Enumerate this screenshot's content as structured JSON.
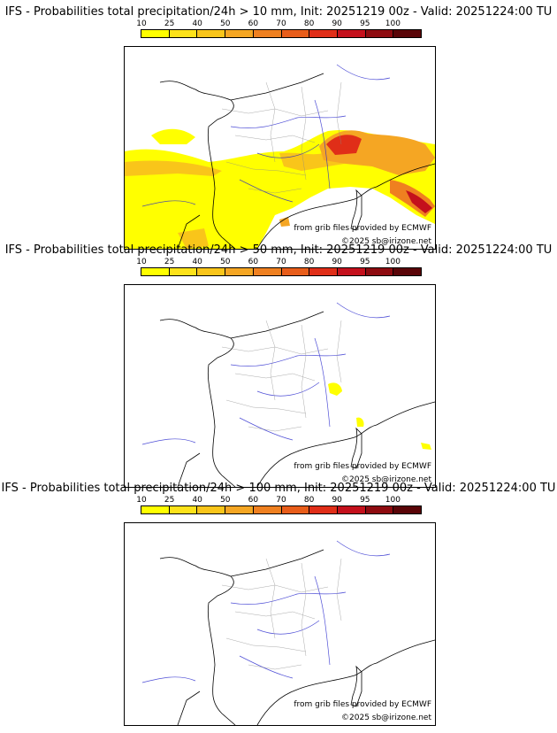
{
  "colorbar": {
    "ticks": [
      "10",
      "25",
      "40",
      "50",
      "60",
      "70",
      "80",
      "90",
      "95",
      "100"
    ],
    "colors": [
      "#ffff00",
      "#fde21a",
      "#f9c51a",
      "#f5a623",
      "#ef8020",
      "#e85d1a",
      "#e02e18",
      "#c4101c",
      "#8e0b10",
      "#5a0508"
    ]
  },
  "panels": [
    {
      "title": "IFS - Probabilities total precipitation/24h > 10 mm, Init: 20251219 00z - Valid: 20251224:00 TU",
      "source_credit": "from grib files provided by ECMWF",
      "copyright": "©2025 sb@irizone.net"
    },
    {
      "title": "IFS - Probabilities total precipitation/24h > 50 mm, Init: 20251219 00z - Valid: 20251224:00 TU",
      "source_credit": "from grib files provided by ECMWF",
      "copyright": "©2025 sb@irizone.net"
    },
    {
      "title": "IFS - Probabilities total precipitation/24h > 100 mm, Init: 20251219 00z - Valid: 20251224:00 TU",
      "source_credit": "from grib files provided by ECMWF",
      "copyright": "©2025 sb@irizone.net"
    }
  ]
}
